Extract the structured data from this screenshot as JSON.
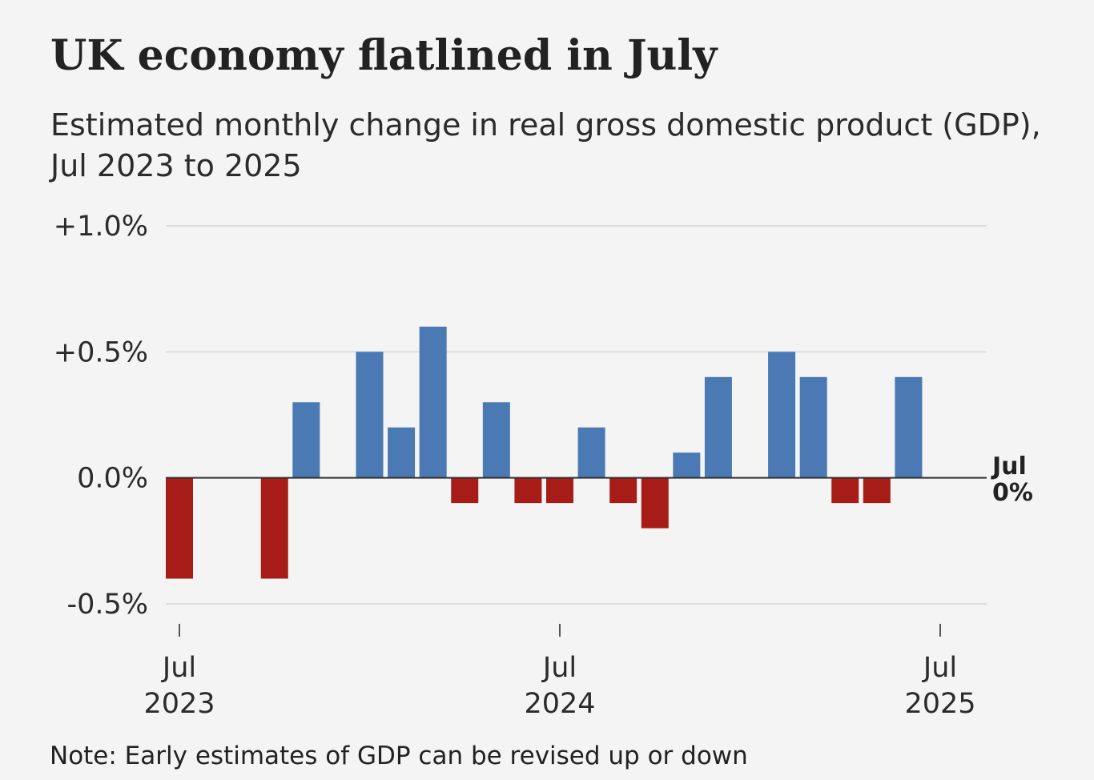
{
  "header": {
    "title": "UK economy flatlined in July",
    "subtitle": "Estimated monthly change in real gross domestic product (GDP), Jul 2023 to 2025"
  },
  "footer": {
    "note": "Note: Early estimates of GDP can be revised up or down"
  },
  "chart_data": {
    "type": "bar",
    "title": "UK economy flatlined in July",
    "subtitle": "Estimated monthly change in real gross domestic product (GDP), Jul 2023 to 2025",
    "xlabel": "",
    "ylabel": "",
    "categories": [
      "Jul 2023",
      "Aug 2023",
      "Sep 2023",
      "Oct 2023",
      "Nov 2023",
      "Dec 2023",
      "Jan 2024",
      "Feb 2024",
      "Mar 2024",
      "Apr 2024",
      "May 2024",
      "Jun 2024",
      "Jul 2024",
      "Aug 2024",
      "Sep 2024",
      "Oct 2024",
      "Nov 2024",
      "Dec 2024",
      "Jan 2025",
      "Feb 2025",
      "Mar 2025",
      "Apr 2025",
      "May 2025",
      "Jun 2025",
      "Jul 2025"
    ],
    "values": [
      -0.4,
      0.0,
      0.0,
      -0.4,
      0.3,
      0.0,
      0.5,
      0.2,
      0.6,
      -0.1,
      0.3,
      -0.1,
      -0.1,
      0.2,
      -0.1,
      -0.2,
      0.1,
      0.4,
      0.0,
      0.5,
      0.4,
      -0.1,
      -0.1,
      0.4,
      0.0
    ],
    "ylim": [
      -0.5,
      1.0
    ],
    "y_ticks": [
      {
        "value": 1.0,
        "label": "+1.0%"
      },
      {
        "value": 0.5,
        "label": "+0.5%"
      },
      {
        "value": 0.0,
        "label": "0.0%"
      },
      {
        "value": -0.5,
        "label": "-0.5%"
      }
    ],
    "x_ticks": [
      {
        "category": "Jul 2023",
        "line1": "Jul",
        "line2": "2023"
      },
      {
        "category": "Jul 2024",
        "line1": "Jul",
        "line2": "2024"
      },
      {
        "category": "Jul 2025",
        "line1": "Jul",
        "line2": "2025"
      }
    ],
    "grid": true,
    "legend": "none",
    "colors": {
      "positive": "#4a79b4",
      "negative": "#a81c18",
      "gridline": "#dcdcdc",
      "zero_line": "#333333",
      "tick_mark": "#555555"
    },
    "annotation": {
      "category": "Jul 2025",
      "line1": "Jul",
      "line2": "0%"
    }
  }
}
